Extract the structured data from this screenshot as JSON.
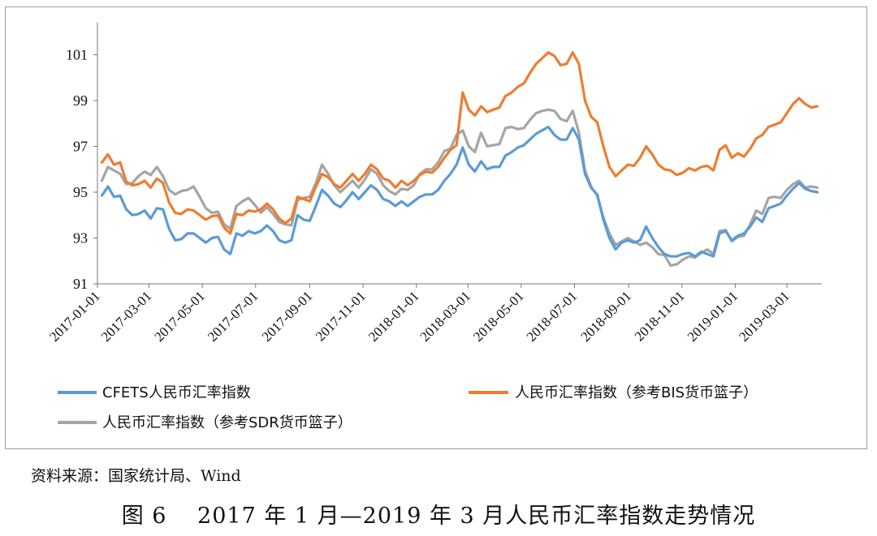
{
  "source_note": "资料来源：国家统计局、Wind",
  "caption": "图 6　 2017 年 1 月—2019 年 3 月人民币汇率指数走势情况",
  "chart_data": {
    "type": "line",
    "title": "",
    "xlabel": "",
    "ylabel": "",
    "ylim": [
      91,
      102.4
    ],
    "yticks": [
      91,
      93,
      95,
      97,
      99,
      101
    ],
    "grid": false,
    "legend_position": "bottom",
    "x_start": "2017-01-01",
    "x_end": "2019-04-10",
    "x_tick_labels": [
      "2017-01-01",
      "2017-03-01",
      "2017-05-01",
      "2017-07-01",
      "2017-09-01",
      "2017-11-01",
      "2018-01-01",
      "2018-03-01",
      "2018-05-01",
      "2018-07-01",
      "2018-09-01",
      "2018-11-01",
      "2019-01-01",
      "2019-03-01"
    ],
    "x": [
      "2017-01-06",
      "2017-01-13",
      "2017-01-20",
      "2017-01-27",
      "2017-02-03",
      "2017-02-10",
      "2017-02-17",
      "2017-02-24",
      "2017-03-03",
      "2017-03-10",
      "2017-03-17",
      "2017-03-24",
      "2017-03-31",
      "2017-04-07",
      "2017-04-14",
      "2017-04-21",
      "2017-04-28",
      "2017-05-05",
      "2017-05-12",
      "2017-05-19",
      "2017-05-26",
      "2017-06-02",
      "2017-06-09",
      "2017-06-16",
      "2017-06-23",
      "2017-06-30",
      "2017-07-07",
      "2017-07-14",
      "2017-07-21",
      "2017-07-28",
      "2017-08-04",
      "2017-08-11",
      "2017-08-18",
      "2017-08-25",
      "2017-09-01",
      "2017-09-08",
      "2017-09-15",
      "2017-09-22",
      "2017-09-29",
      "2017-10-06",
      "2017-10-13",
      "2017-10-20",
      "2017-10-27",
      "2017-11-03",
      "2017-11-10",
      "2017-11-17",
      "2017-11-24",
      "2017-12-01",
      "2017-12-08",
      "2017-12-15",
      "2017-12-22",
      "2017-12-29",
      "2018-01-05",
      "2018-01-12",
      "2018-01-19",
      "2018-01-26",
      "2018-02-02",
      "2018-02-09",
      "2018-02-16",
      "2018-02-23",
      "2018-03-02",
      "2018-03-09",
      "2018-03-16",
      "2018-03-23",
      "2018-03-30",
      "2018-04-06",
      "2018-04-13",
      "2018-04-20",
      "2018-04-27",
      "2018-05-04",
      "2018-05-11",
      "2018-05-18",
      "2018-05-25",
      "2018-06-01",
      "2018-06-08",
      "2018-06-15",
      "2018-06-22",
      "2018-06-29",
      "2018-07-06",
      "2018-07-13",
      "2018-07-20",
      "2018-07-27",
      "2018-08-03",
      "2018-08-10",
      "2018-08-17",
      "2018-08-24",
      "2018-08-31",
      "2018-09-07",
      "2018-09-14",
      "2018-09-21",
      "2018-09-28",
      "2018-10-05",
      "2018-10-12",
      "2018-10-19",
      "2018-10-26",
      "2018-11-02",
      "2018-11-09",
      "2018-11-16",
      "2018-11-23",
      "2018-11-30",
      "2018-12-07",
      "2018-12-14",
      "2018-12-21",
      "2018-12-28",
      "2019-01-04",
      "2019-01-11",
      "2019-01-18",
      "2019-01-25",
      "2019-02-01",
      "2019-02-08",
      "2019-02-15",
      "2019-02-22",
      "2019-03-01",
      "2019-03-08",
      "2019-03-15",
      "2019-03-22",
      "2019-03-29",
      "2019-04-05"
    ],
    "series": [
      {
        "name": "CFETS人民币汇率指数",
        "color": "#5b9bd5",
        "values": [
          94.85,
          95.25,
          94.8,
          94.85,
          94.25,
          94.0,
          94.05,
          94.2,
          93.85,
          94.3,
          94.25,
          93.4,
          92.9,
          92.95,
          93.2,
          93.2,
          93.0,
          92.8,
          93.0,
          93.05,
          92.5,
          92.3,
          93.2,
          93.1,
          93.3,
          93.2,
          93.3,
          93.55,
          93.3,
          92.9,
          92.8,
          92.9,
          94.0,
          93.8,
          93.75,
          94.4,
          95.1,
          94.85,
          94.5,
          94.35,
          94.65,
          95.0,
          94.7,
          95.0,
          95.3,
          95.1,
          94.7,
          94.6,
          94.4,
          94.6,
          94.4,
          94.6,
          94.8,
          94.9,
          94.9,
          95.1,
          95.5,
          95.8,
          96.2,
          96.95,
          96.2,
          95.9,
          96.35,
          96.0,
          96.1,
          96.1,
          96.6,
          96.75,
          96.95,
          97.05,
          97.3,
          97.55,
          97.7,
          97.85,
          97.5,
          97.3,
          97.3,
          97.8,
          97.3,
          95.8,
          95.2,
          94.9,
          93.8,
          93.0,
          92.5,
          92.8,
          92.9,
          92.8,
          92.9,
          93.5,
          93.0,
          92.6,
          92.3,
          92.2,
          92.2,
          92.3,
          92.35,
          92.2,
          92.4,
          92.3,
          92.2,
          93.2,
          93.3,
          92.9,
          93.1,
          93.2,
          93.5,
          93.9,
          93.7,
          94.3,
          94.4,
          94.5,
          94.85,
          95.15,
          95.4,
          95.15,
          95.05,
          95.0
        ]
      },
      {
        "name": "人民币汇率指数（参考BIS货币篮子）",
        "color": "#ed7d31",
        "values": [
          96.3,
          96.65,
          96.2,
          96.3,
          95.45,
          95.3,
          95.35,
          95.5,
          95.2,
          95.6,
          95.4,
          94.55,
          94.1,
          94.05,
          94.25,
          94.2,
          94.0,
          93.8,
          93.95,
          94.0,
          93.45,
          93.2,
          94.05,
          94.0,
          94.2,
          94.15,
          94.25,
          94.5,
          94.25,
          93.85,
          93.65,
          93.85,
          94.8,
          94.7,
          94.6,
          95.25,
          95.8,
          95.65,
          95.35,
          95.2,
          95.5,
          95.8,
          95.5,
          95.8,
          96.2,
          96.0,
          95.6,
          95.5,
          95.2,
          95.5,
          95.3,
          95.5,
          95.75,
          95.9,
          95.85,
          96.1,
          96.5,
          96.85,
          97.05,
          99.35,
          98.6,
          98.35,
          98.75,
          98.5,
          98.6,
          98.7,
          99.2,
          99.35,
          99.6,
          99.75,
          100.2,
          100.6,
          100.85,
          101.1,
          100.95,
          100.55,
          100.6,
          101.1,
          100.6,
          99.0,
          98.3,
          98.05,
          97.0,
          96.1,
          95.7,
          95.95,
          96.2,
          96.15,
          96.5,
          97.0,
          96.65,
          96.2,
          96.0,
          95.95,
          95.75,
          95.85,
          96.05,
          95.95,
          96.1,
          96.15,
          95.95,
          96.85,
          97.05,
          96.5,
          96.7,
          96.55,
          96.9,
          97.35,
          97.5,
          97.85,
          97.95,
          98.05,
          98.45,
          98.85,
          99.1,
          98.85,
          98.7,
          98.75
        ]
      },
      {
        "name": "人民币汇率指数（参考SDR货币篮子）",
        "color": "#a5a5a5",
        "values": [
          95.5,
          96.1,
          95.95,
          95.8,
          95.35,
          95.4,
          95.7,
          95.9,
          95.75,
          96.1,
          95.7,
          95.1,
          94.9,
          95.05,
          95.1,
          95.25,
          94.8,
          94.3,
          94.1,
          94.15,
          93.6,
          93.4,
          94.4,
          94.6,
          94.75,
          94.45,
          94.1,
          94.35,
          94.05,
          93.7,
          93.6,
          93.55,
          94.65,
          94.75,
          94.8,
          95.4,
          96.2,
          95.8,
          95.3,
          95.0,
          95.25,
          95.5,
          95.2,
          95.55,
          96.0,
          95.8,
          95.3,
          95.05,
          94.9,
          95.15,
          95.1,
          95.3,
          95.8,
          96.0,
          96.0,
          96.3,
          96.8,
          96.9,
          97.5,
          97.7,
          97.0,
          96.75,
          97.6,
          97.0,
          97.05,
          97.1,
          97.8,
          97.85,
          97.75,
          97.8,
          98.15,
          98.45,
          98.55,
          98.6,
          98.55,
          98.2,
          98.1,
          98.55,
          97.6,
          95.95,
          95.25,
          94.85,
          93.9,
          93.2,
          92.7,
          92.85,
          93.0,
          92.85,
          92.7,
          92.8,
          92.6,
          92.3,
          92.25,
          91.8,
          91.85,
          92.05,
          92.2,
          92.15,
          92.35,
          92.5,
          92.3,
          93.3,
          93.35,
          92.85,
          93.05,
          93.1,
          93.6,
          94.2,
          94.05,
          94.75,
          94.8,
          94.75,
          95.1,
          95.35,
          95.5,
          95.2,
          95.25,
          95.2
        ]
      }
    ]
  }
}
